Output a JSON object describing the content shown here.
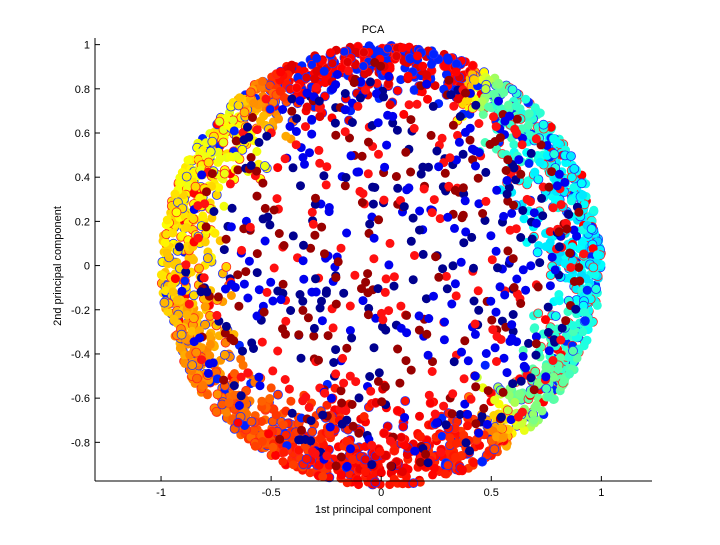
{
  "chart_data": {
    "type": "scatter",
    "title": "PCA",
    "xlabel": "1st principal component",
    "ylabel": "2nd principal component",
    "xlim": [
      -1.3,
      1.23
    ],
    "ylim": [
      -0.975,
      1.03
    ],
    "grid": false,
    "legend": "none",
    "xticks": [
      {
        "value": -1,
        "label": "-1"
      },
      {
        "value": -0.5,
        "label": "-0.5"
      },
      {
        "value": 0,
        "label": "0"
      },
      {
        "value": 0.5,
        "label": "0.5"
      },
      {
        "value": 1,
        "label": "1"
      }
    ],
    "yticks": [
      {
        "value": -0.8,
        "label": "-0.8"
      },
      {
        "value": -0.6,
        "label": "-0.6"
      },
      {
        "value": -0.4,
        "label": "-0.4"
      },
      {
        "value": -0.2,
        "label": "-0.2"
      },
      {
        "value": 0,
        "label": "0"
      },
      {
        "value": 0.2,
        "label": "0.2"
      },
      {
        "value": 0.4,
        "label": "0.4"
      },
      {
        "value": 0.6,
        "label": "0.6"
      },
      {
        "value": 0.8,
        "label": "0.8"
      },
      {
        "value": 1,
        "label": "1"
      }
    ],
    "distribution": {
      "seed": 12345,
      "ring": {
        "count": 2200,
        "radius": 1.0,
        "spread": 0.11,
        "color_stops_by_angle_deg": [
          [
            -180,
            0.66
          ],
          [
            -150,
            0.74
          ],
          [
            -120,
            0.82
          ],
          [
            -90,
            0.88
          ],
          [
            -60,
            0.84
          ],
          [
            -45,
            0.5
          ],
          [
            -20,
            0.42
          ],
          [
            0,
            0.36
          ],
          [
            30,
            0.38
          ],
          [
            55,
            0.45
          ],
          [
            75,
            1.0
          ],
          [
            90,
            1.0
          ],
          [
            110,
            0.95
          ],
          [
            135,
            0.62
          ],
          [
            160,
            0.64
          ],
          [
            180,
            0.66
          ]
        ],
        "top_mix_colors": [
          "#ff0000",
          "#0022ff",
          "#e00000"
        ]
      },
      "interior": {
        "count": 720,
        "max_radius": 0.93,
        "colors": [
          "#990000",
          "#00008f",
          "#0000ee",
          "#ff1010"
        ]
      }
    }
  }
}
